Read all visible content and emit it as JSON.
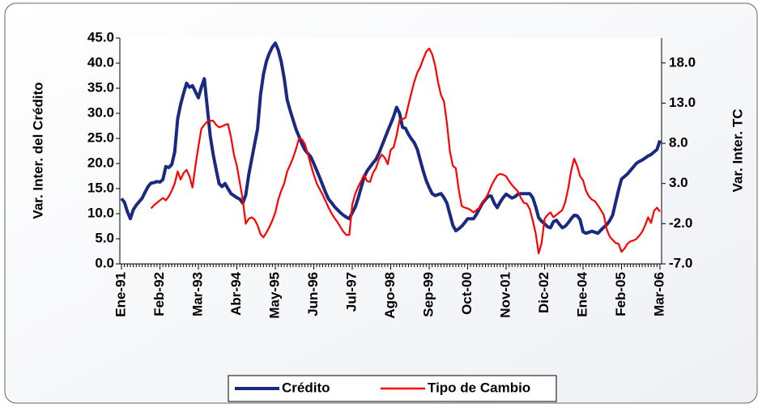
{
  "chart_data": {
    "type": "line",
    "categories": [
      "Ene-91",
      null,
      null,
      null,
      null,
      null,
      null,
      null,
      null,
      null,
      null,
      null,
      null,
      "Feb-92",
      null,
      null,
      null,
      null,
      null,
      null,
      null,
      null,
      null,
      null,
      null,
      null,
      "Mar-93",
      null,
      null,
      null,
      null,
      null,
      null,
      null,
      null,
      null,
      null,
      null,
      null,
      "Abr-94",
      null,
      null,
      null,
      null,
      null,
      null,
      null,
      null,
      null,
      null,
      null,
      null,
      "May-95",
      null,
      null,
      null,
      null,
      null,
      null,
      null,
      null,
      null,
      null,
      null,
      null,
      "Jun-96",
      null,
      null,
      null,
      null,
      null,
      null,
      null,
      null,
      null,
      null,
      null,
      null,
      "Jul-97",
      null,
      null,
      null,
      null,
      null,
      null,
      null,
      null,
      null,
      null,
      null,
      null,
      "Ago-98",
      null,
      null,
      null,
      null,
      null,
      null,
      null,
      null,
      null,
      null,
      null,
      null,
      "Sep-99",
      null,
      null,
      null,
      null,
      null,
      null,
      null,
      null,
      null,
      null,
      null,
      null,
      "Oct-00",
      null,
      null,
      null,
      null,
      null,
      null,
      null,
      null,
      null,
      null,
      null,
      null,
      "Nov-01",
      null,
      null,
      null,
      null,
      null,
      null,
      null,
      null,
      null,
      null,
      null,
      null,
      "Dic-02",
      null,
      null,
      null,
      null,
      null,
      null,
      null,
      null,
      null,
      null,
      null,
      null,
      "Ene-04",
      null,
      null,
      null,
      null,
      null,
      null,
      null,
      null,
      null,
      null,
      null,
      null,
      "Feb-05",
      null,
      null,
      null,
      null,
      null,
      null,
      null,
      null,
      null,
      null,
      null,
      null,
      "Mar-06"
    ],
    "ylabel": "Var. Inter. del Crédito",
    "y2label": "Var. Inter. TC",
    "ylim": [
      0,
      45
    ],
    "yticks": [
      {
        "value": 0,
        "label": "0.0"
      },
      {
        "value": 5,
        "label": "5.0"
      },
      {
        "value": 10,
        "label": "10.0"
      },
      {
        "value": 15,
        "label": "15.0"
      },
      {
        "value": 20,
        "label": "20.0"
      },
      {
        "value": 25,
        "label": "25.0"
      },
      {
        "value": 30,
        "label": "30.0"
      },
      {
        "value": 35,
        "label": "35.0"
      },
      {
        "value": 40,
        "label": "40.0"
      },
      {
        "value": 45,
        "label": "45.0"
      }
    ],
    "y2lim": [
      -7,
      21.1
    ],
    "y2ticks": [
      {
        "value": -7,
        "label": "-7.0"
      },
      {
        "value": -2,
        "label": "-2.0"
      },
      {
        "value": 3,
        "label": "3.0"
      },
      {
        "value": 8,
        "label": "8.0"
      },
      {
        "value": 13,
        "label": "13.0"
      },
      {
        "value": 18,
        "label": "18.0"
      }
    ],
    "legend": "bottom",
    "series": [
      {
        "name": "Crédito",
        "color": "#1a2a80",
        "values": [
          13,
          12.3,
          10.4,
          9,
          10.8,
          11.7,
          12.4,
          13.1,
          14.3,
          15.4,
          16.1,
          16.2,
          16.4,
          16.3,
          16.8,
          19.4,
          19.2,
          19.8,
          22.3,
          28.9,
          31.8,
          34,
          36,
          35.2,
          35.5,
          34.3,
          33.1,
          35.2,
          36.9,
          31.2,
          25.5,
          21.8,
          18.8,
          16,
          15.4,
          16,
          15,
          14,
          13.6,
          13.2,
          12.9,
          12.1,
          13.7,
          17.7,
          20.8,
          23.9,
          26.9,
          33.7,
          37.8,
          40.4,
          42,
          43.2,
          44,
          42.6,
          40.3,
          37,
          32.7,
          30.6,
          28.7,
          26.8,
          25.4,
          23.9,
          22.7,
          22,
          21.3,
          20,
          18.6,
          17.2,
          15.7,
          14.2,
          12.9,
          12.2,
          11.4,
          10.8,
          10.2,
          9.7,
          9.3,
          9,
          10.2,
          11.3,
          13.1,
          15.2,
          17.3,
          18.5,
          19.3,
          20.1,
          20.8,
          22,
          23.5,
          25,
          26.5,
          27.9,
          29.4,
          31.2,
          30,
          27.2,
          27,
          25.8,
          24.9,
          24.1,
          22.8,
          20.6,
          18.5,
          16.6,
          15.2,
          14,
          13.6,
          13.8,
          14,
          13.2,
          12.1,
          9.9,
          7.7,
          6.6,
          7,
          7.5,
          8.2,
          9,
          9,
          9,
          9.9,
          11,
          12.1,
          12.8,
          13.5,
          13.5,
          12.1,
          11.2,
          12.3,
          13.2,
          13.9,
          13.5,
          13.1,
          13.4,
          13.9,
          14,
          14,
          14,
          14,
          13.2,
          11.4,
          9.2,
          8.5,
          8,
          7.4,
          7.2,
          8.4,
          8.7,
          7.9,
          7.2,
          7.5,
          8.2,
          9,
          9.7,
          9.6,
          8.8,
          6.4,
          6.1,
          6.3,
          6.5,
          6.3,
          6.1,
          6.7,
          7.3,
          7.8,
          8.6,
          9.7,
          12.2,
          14.7,
          16.9,
          17.4,
          17.9,
          18.6,
          19.3,
          20,
          20.4,
          20.7,
          21.1,
          21.5,
          21.8,
          22.3,
          22.8,
          24.6
        ]
      },
      {
        "name": "Tipo de Cambio",
        "color": "#ff0000",
        "axis": "y2",
        "values": [
          null,
          null,
          null,
          null,
          null,
          null,
          null,
          null,
          null,
          null,
          -0.1,
          0.3,
          0.6,
          0.9,
          1.2,
          0.9,
          1.4,
          2.1,
          3,
          4.5,
          3.5,
          4.3,
          4.7,
          3.9,
          2.5,
          5.2,
          7.6,
          9.8,
          10.3,
          10.7,
          10.8,
          10.8,
          10.3,
          10,
          10.1,
          10.3,
          10.4,
          8.8,
          6.6,
          5.2,
          3.1,
          1,
          -2,
          -1.4,
          -1.2,
          -1.5,
          -2.2,
          -3.3,
          -3.7,
          -3.1,
          -2.4,
          -1.6,
          -0.6,
          1,
          2.1,
          3,
          4.5,
          5.3,
          6.2,
          7.3,
          8.6,
          8.5,
          7.9,
          6.7,
          5.3,
          4.1,
          3,
          2.3,
          1.6,
          0.8,
          0,
          -0.7,
          -1.3,
          -1.8,
          -2.4,
          -3,
          -3.4,
          -3.4,
          0.4,
          1.7,
          2.6,
          3.3,
          4.1,
          3.3,
          3.2,
          4.3,
          4.9,
          6,
          6.6,
          6.2,
          5.4,
          7.2,
          7.5,
          9,
          10.9,
          11,
          11.2,
          12.8,
          14.3,
          15.7,
          16.8,
          17.5,
          18.5,
          19.4,
          19.8,
          19.1,
          17.7,
          15.6,
          14,
          13.2,
          10.5,
          7,
          5.2,
          4.9,
          2.2,
          0.2,
          0,
          -0.1,
          -0.3,
          -0.6,
          -0.3,
          0,
          0.6,
          1.1,
          1.8,
          2.7,
          3.4,
          4,
          4.2,
          4.1,
          3.9,
          3.3,
          2.8,
          2.4,
          2,
          1.2,
          0.6,
          0.5,
          -0.2,
          -1.6,
          -3.2,
          -5.7,
          -4.4,
          -1.4,
          -0.9,
          -0.6,
          -1.2,
          -0.9,
          -0.6,
          -0.3,
          0.7,
          2.4,
          4.6,
          6.1,
          5.2,
          3.9,
          3.4,
          2.1,
          1.4,
          1,
          0.8,
          0.3,
          -0.3,
          -0.9,
          -2.7,
          -3.6,
          -4,
          -4.4,
          -4.5,
          -5.5,
          -5.1,
          -4.5,
          -4.2,
          -4.1,
          -3.9,
          -3.5,
          -3,
          -2.2,
          -1.2,
          -1.9,
          -0.4,
          0,
          -0.5
        ]
      }
    ]
  }
}
